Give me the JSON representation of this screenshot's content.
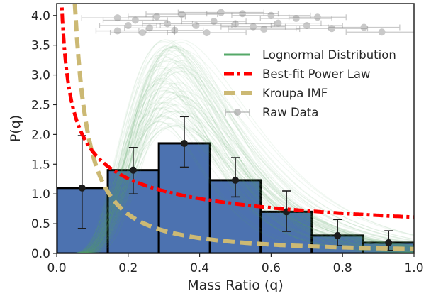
{
  "chart_data": {
    "type": "bar",
    "xlabel": "Mass Ratio (q)",
    "ylabel": "P(q)",
    "xlim": [
      0.0,
      1.0
    ],
    "ylim": [
      0.0,
      4.2
    ],
    "xticks": [
      "0.0",
      "0.2",
      "0.4",
      "0.6",
      "0.8",
      "1.0"
    ],
    "yticks": [
      "0.0",
      "0.5",
      "1.0",
      "1.5",
      "2.0",
      "2.5",
      "3.0",
      "3.5",
      "4.0"
    ],
    "grid": false,
    "legend_placement": "upper-right",
    "colors": {
      "bars": "#4c72b0",
      "bar_edge": "#000000",
      "lognormal": "#55a868",
      "power_law": "#ff0000",
      "kroupa": "#ccb974",
      "raw_data": "#808080"
    },
    "histogram": {
      "bin_edges": [
        0.0,
        0.143,
        0.286,
        0.429,
        0.571,
        0.714,
        0.857,
        1.0
      ],
      "values": [
        1.1,
        1.4,
        1.85,
        1.23,
        0.7,
        0.3,
        0.18
      ],
      "centers": [
        0.071,
        0.214,
        0.357,
        0.5,
        0.643,
        0.786,
        0.929
      ],
      "err_low": [
        0.68,
        0.4,
        0.4,
        0.28,
        0.33,
        0.17,
        0.13
      ],
      "err_high": [
        0.88,
        0.38,
        0.45,
        0.38,
        0.35,
        0.27,
        0.2
      ]
    },
    "legend": [
      {
        "label": "Lognormal Distribution",
        "style": "line"
      },
      {
        "label": "Best-fit Power Law",
        "style": "dashdot"
      },
      {
        "label": "Kroupa IMF",
        "style": "dashed"
      },
      {
        "label": "Raw Data",
        "style": "errorbar"
      }
    ],
    "lognormal_median": {
      "mu": 0.32,
      "sigma": 0.42,
      "peak": 2.85
    },
    "power_law": {
      "a": 0.61,
      "exponent": -0.45
    },
    "kroupa": {
      "a": 0.075,
      "exponent": -1.35
    },
    "raw_data": [
      {
        "x": 0.17,
        "y": 3.96,
        "xerr": 0.1
      },
      {
        "x": 0.22,
        "y": 3.92,
        "xerr": 0.09
      },
      {
        "x": 0.28,
        "y": 3.98,
        "xerr": 0.08
      },
      {
        "x": 0.35,
        "y": 4.02,
        "xerr": 0.1
      },
      {
        "x": 0.46,
        "y": 4.05,
        "xerr": 0.12
      },
      {
        "x": 0.52,
        "y": 4.03,
        "xerr": 0.1
      },
      {
        "x": 0.6,
        "y": 4.0,
        "xerr": 0.11
      },
      {
        "x": 0.67,
        "y": 3.95,
        "xerr": 0.1
      },
      {
        "x": 0.73,
        "y": 3.97,
        "xerr": 0.08
      },
      {
        "x": 0.2,
        "y": 3.83,
        "xerr": 0.08
      },
      {
        "x": 0.26,
        "y": 3.79,
        "xerr": 0.07
      },
      {
        "x": 0.31,
        "y": 3.86,
        "xerr": 0.07
      },
      {
        "x": 0.39,
        "y": 3.83,
        "xerr": 0.1
      },
      {
        "x": 0.44,
        "y": 3.9,
        "xerr": 0.09
      },
      {
        "x": 0.5,
        "y": 3.86,
        "xerr": 0.11
      },
      {
        "x": 0.55,
        "y": 3.81,
        "xerr": 0.09
      },
      {
        "x": 0.62,
        "y": 3.87,
        "xerr": 0.12
      },
      {
        "x": 0.7,
        "y": 3.83,
        "xerr": 0.1
      },
      {
        "x": 0.17,
        "y": 3.74,
        "xerr": 0.06
      },
      {
        "x": 0.24,
        "y": 3.71,
        "xerr": 0.09
      },
      {
        "x": 0.33,
        "y": 3.75,
        "xerr": 0.08
      },
      {
        "x": 0.42,
        "y": 3.71,
        "xerr": 0.11
      },
      {
        "x": 0.58,
        "y": 3.77,
        "xerr": 0.1
      },
      {
        "x": 0.77,
        "y": 3.78,
        "xerr": 0.1
      },
      {
        "x": 0.86,
        "y": 3.8,
        "xerr": 0.1
      },
      {
        "x": 0.91,
        "y": 3.72,
        "xerr": 0.1
      }
    ]
  }
}
